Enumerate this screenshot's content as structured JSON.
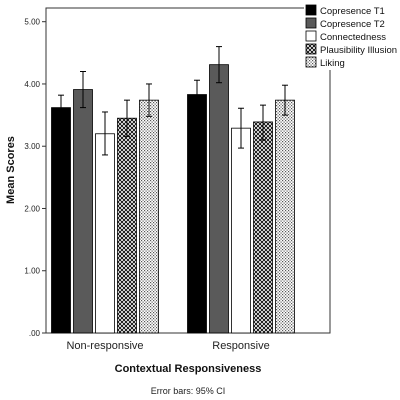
{
  "chart_data": {
    "type": "bar",
    "xlabel": "Contextual Responsiveness",
    "ylabel": "Mean Scores",
    "ylim": [
      0,
      5
    ],
    "yticks": [
      0,
      1,
      2,
      3,
      4,
      5
    ],
    "ytick_labels": [
      ".00",
      "1.00",
      "2.00",
      "3.00",
      "4.00",
      "5.00"
    ],
    "categories": [
      "Non-responsive",
      "Responsive"
    ],
    "series": [
      {
        "name": "Copresence T1",
        "values": [
          3.62,
          3.83
        ],
        "ci_low": [
          3.42,
          3.6
        ],
        "ci_high": [
          3.82,
          4.06
        ],
        "fill": "#000000",
        "pattern": "solid"
      },
      {
        "name": "Copresence T2",
        "values": [
          3.91,
          4.31
        ],
        "ci_low": [
          3.62,
          4.02
        ],
        "ci_high": [
          4.2,
          4.6
        ],
        "fill": "#5a5a5a",
        "pattern": "solid"
      },
      {
        "name": "Connectedness",
        "values": [
          3.2,
          3.29
        ],
        "ci_low": [
          2.86,
          2.97
        ],
        "ci_high": [
          3.55,
          3.61
        ],
        "fill": "#ffffff",
        "pattern": "solid"
      },
      {
        "name": "Plausibility Illusion",
        "values": [
          3.45,
          3.39
        ],
        "ci_low": [
          3.16,
          3.1
        ],
        "ci_high": [
          3.74,
          3.66
        ],
        "fill": "#ffffff",
        "pattern": "crosshatch"
      },
      {
        "name": "Liking",
        "values": [
          3.74,
          3.74
        ],
        "ci_low": [
          3.48,
          3.5
        ],
        "ci_high": [
          4.0,
          3.98
        ],
        "fill": "#ffffff",
        "pattern": "dots"
      }
    ],
    "legend_position": "top-right",
    "grid": false,
    "footnote": "Error bars: 95% CI"
  }
}
